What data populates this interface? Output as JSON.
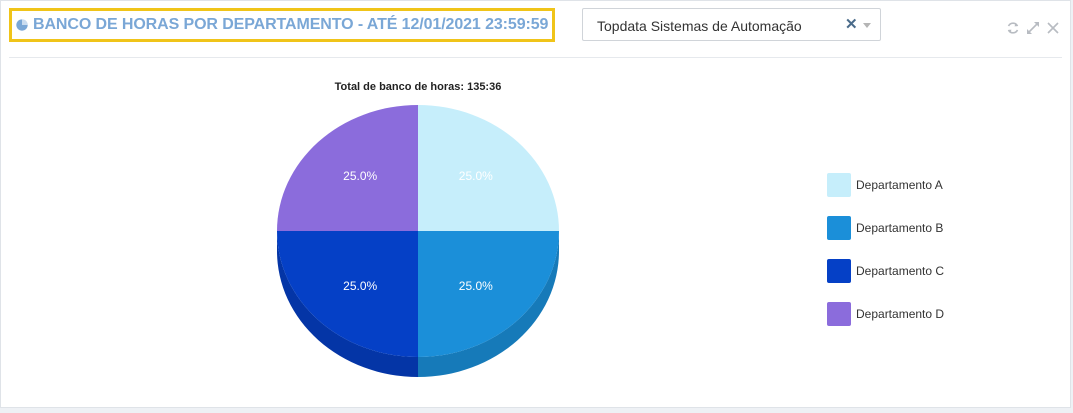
{
  "header": {
    "title": "BANCO DE HORAS POR DEPARTAMENTO - ATÉ 12/01/2021 23:59:59",
    "title_icon": "pie-chart-icon"
  },
  "company_select": {
    "value": "Topdata Sistemas de Automação",
    "clear_icon": "close-icon",
    "arrow_icon": "chevron-down-icon"
  },
  "toolbar": {
    "icons": [
      "refresh-icon",
      "expand-icon",
      "close-icon"
    ]
  },
  "colors": {
    "title": "#7aa7d6",
    "highlight": "#f0c419"
  },
  "chart_data": {
    "type": "pie",
    "title": "Total de banco de horas: 135:36",
    "categories": [
      "Departamento A",
      "Departamento B",
      "Departamento C",
      "Departamento D"
    ],
    "values": [
      25.0,
      25.0,
      25.0,
      25.0
    ],
    "labels": [
      "25.0%",
      "25.0%",
      "25.0%",
      "25.0%"
    ],
    "colors": [
      "#c6eefb",
      "#1b8fd9",
      "#0540c6",
      "#8b6cdc"
    ],
    "side_colors": [
      "#9fcfe3",
      "#167ab9",
      "#0435a6",
      "#7458bb"
    ],
    "legend_position": "right"
  }
}
